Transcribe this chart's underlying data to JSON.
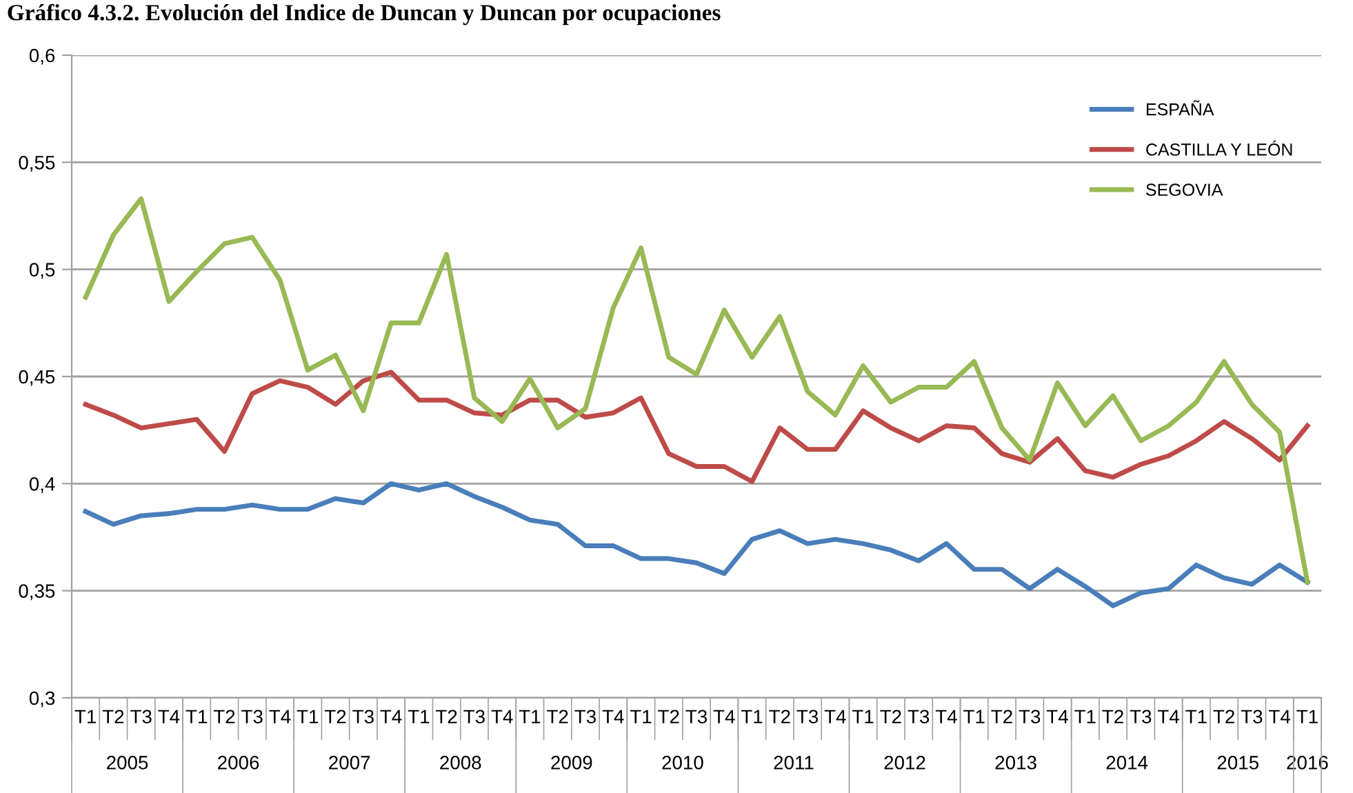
{
  "chart_data": {
    "type": "line",
    "title": "Gráfico 4.3.2. Evolución del Indice de Duncan y Duncan por ocupaciones",
    "categories": [
      "T1",
      "T2",
      "T3",
      "T4",
      "T1",
      "T2",
      "T3",
      "T4",
      "T1",
      "T2",
      "T3",
      "T4",
      "T1",
      "T2",
      "T3",
      "T4",
      "T1",
      "T2",
      "T3",
      "T4",
      "T1",
      "T2",
      "T3",
      "T4",
      "T1",
      "T2",
      "T3",
      "T4",
      "T1",
      "T2",
      "T3",
      "T4",
      "T1",
      "T2",
      "T3",
      "T4",
      "T1",
      "T2",
      "T3",
      "T4",
      "T1",
      "T2",
      "T3",
      "T4",
      "T1"
    ],
    "annotations": [
      "2005",
      "2006",
      "2007",
      "2008",
      "2009",
      "2010",
      "2011",
      "2012",
      "2013",
      "2014",
      "2015",
      "2016"
    ],
    "series": [
      {
        "name": "ESPAÑA",
        "color": "#4a7ebb",
        "values": [
          0.387,
          0.381,
          0.385,
          0.386,
          0.388,
          0.388,
          0.39,
          0.388,
          0.388,
          0.393,
          0.391,
          0.4,
          0.397,
          0.4,
          0.394,
          0.389,
          0.383,
          0.381,
          0.371,
          0.371,
          0.365,
          0.365,
          0.363,
          0.358,
          0.374,
          0.378,
          0.372,
          0.374,
          0.372,
          0.369,
          0.364,
          0.372,
          0.36,
          0.36,
          0.351,
          0.36,
          0.352,
          0.343,
          0.349,
          0.351,
          0.362,
          0.356,
          0.353,
          0.362,
          0.354
        ]
      },
      {
        "name": "CASTILLA Y LEÓN",
        "color": "#be4b48",
        "values": [
          0.437,
          0.432,
          0.426,
          0.428,
          0.43,
          0.415,
          0.442,
          0.448,
          0.445,
          0.437,
          0.448,
          0.452,
          0.439,
          0.439,
          0.433,
          0.432,
          0.439,
          0.439,
          0.431,
          0.433,
          0.44,
          0.414,
          0.408,
          0.408,
          0.401,
          0.426,
          0.416,
          0.416,
          0.434,
          0.426,
          0.42,
          0.427,
          0.426,
          0.414,
          0.41,
          0.421,
          0.406,
          0.403,
          0.409,
          0.413,
          0.42,
          0.429,
          0.421,
          0.411,
          0.427
        ]
      },
      {
        "name": "SEGOVIA",
        "color": "#98b954",
        "values": [
          0.487,
          0.516,
          0.533,
          0.485,
          0.499,
          0.512,
          0.515,
          0.495,
          0.453,
          0.46,
          0.434,
          0.475,
          0.475,
          0.507,
          0.44,
          0.429,
          0.449,
          0.426,
          0.435,
          0.482,
          0.51,
          0.459,
          0.451,
          0.481,
          0.459,
          0.478,
          0.443,
          0.432,
          0.455,
          0.438,
          0.445,
          0.445,
          0.457,
          0.426,
          0.411,
          0.447,
          0.427,
          0.441,
          0.42,
          0.427,
          0.438,
          0.457,
          0.437,
          0.424,
          0.354
        ]
      }
    ],
    "ylim": [
      0.3,
      0.6
    ],
    "yticks": [
      {
        "value": 0.3,
        "label": "0,3"
      },
      {
        "value": 0.35,
        "label": "0,35"
      },
      {
        "value": 0.4,
        "label": "0,4"
      },
      {
        "value": 0.45,
        "label": "0,45"
      },
      {
        "value": 0.5,
        "label": "0,5"
      },
      {
        "value": 0.55,
        "label": "0,55"
      },
      {
        "value": 0.6,
        "label": "0,6"
      }
    ],
    "grid": "y",
    "legend": "top right",
    "marker": "none",
    "line_style": "solid"
  }
}
